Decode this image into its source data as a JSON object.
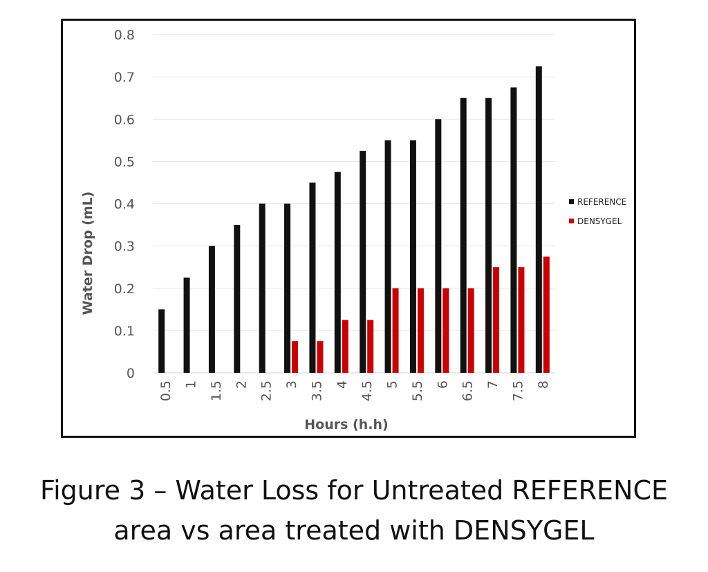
{
  "chart_data": {
    "type": "bar",
    "title": "",
    "xlabel": "Hours (h.h)",
    "ylabel": "Water Drop (mL)",
    "ylim": [
      0,
      0.8
    ],
    "yticks": [
      "0",
      "0.1",
      "0.2",
      "0.3",
      "0.4",
      "0.5",
      "0.6",
      "0.7",
      "0.8"
    ],
    "grid": true,
    "legend_position": "right",
    "categories": [
      "0.5",
      "1",
      "1.5",
      "2",
      "2.5",
      "3",
      "3.5",
      "4",
      "4.5",
      "5",
      "5.5",
      "6",
      "6.5",
      "7",
      "7.5",
      "8"
    ],
    "series": [
      {
        "name": "REFERENCE",
        "color": "#111111",
        "values": [
          0.15,
          0.225,
          0.3,
          0.35,
          0.4,
          0.4,
          0.45,
          0.475,
          0.525,
          0.55,
          0.55,
          0.6,
          0.65,
          0.65,
          0.675,
          0.725
        ]
      },
      {
        "name": "DENSYGEL",
        "color": "#cc0000",
        "values": [
          0,
          0,
          0,
          0,
          0,
          0.075,
          0.075,
          0.125,
          0.125,
          0.2,
          0.2,
          0.2,
          0.2,
          0.25,
          0.25,
          0.275
        ]
      }
    ]
  },
  "caption": {
    "line1": "Figure 3 – Water Loss for Untreated REFERENCE",
    "line2": "area vs area treated with DENSYGEL"
  }
}
